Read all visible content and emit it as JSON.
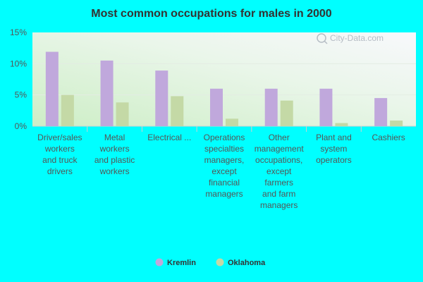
{
  "chart_data": {
    "type": "bar",
    "title": "Most common occupations for males in 2000",
    "xlabel": "",
    "ylabel": "",
    "ylim": [
      0,
      15
    ],
    "yticks": [
      "0%",
      "5%",
      "10%",
      "15%"
    ],
    "categories": [
      "Driver/sales workers and truck drivers",
      "Metal workers and plastic workers",
      "Electrical ...",
      "Operations specialties managers, except financial managers",
      "Other management occupations, except farmers and farm managers",
      "Plant and system operators",
      "Cashiers"
    ],
    "category_lines": [
      [
        "Driver/sales",
        "workers",
        "and truck",
        "drivers"
      ],
      [
        "Metal",
        "workers",
        "and plastic",
        "workers"
      ],
      [
        "Electrical ..."
      ],
      [
        "Operations",
        "specialties",
        "managers,",
        "except",
        "financial",
        "managers"
      ],
      [
        "Other",
        "management",
        "occupations,",
        "except",
        "farmers",
        "and farm",
        "managers"
      ],
      [
        "Plant and",
        "system",
        "operators"
      ],
      [
        "Cashiers"
      ]
    ],
    "series": [
      {
        "name": "Kremlin",
        "color": "#c0a8dc",
        "values": [
          11.9,
          10.5,
          8.9,
          6.0,
          6.0,
          6.0,
          4.5
        ]
      },
      {
        "name": "Oklahoma",
        "color": "#c4d9a6",
        "values": [
          5.0,
          3.8,
          4.8,
          1.2,
          4.1,
          0.5,
          0.9
        ]
      }
    ],
    "grid": true,
    "legend": "bottom-center",
    "watermark": "City-Data.com"
  }
}
